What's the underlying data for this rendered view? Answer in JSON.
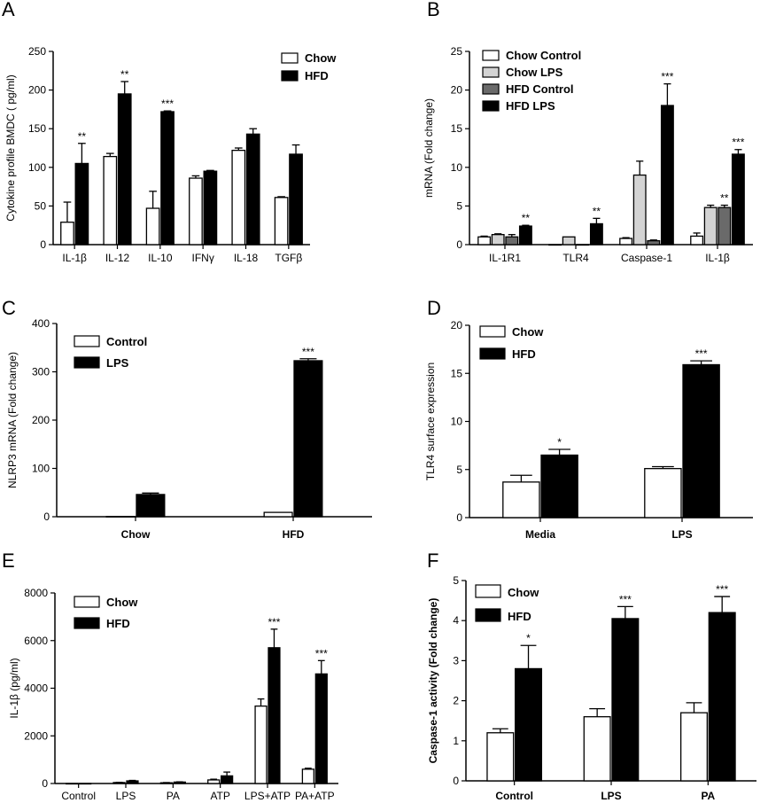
{
  "chart_data": [
    {
      "panel": "A",
      "type": "bar",
      "ylabel": "Cytokine profile BMDC ( pg/ml)",
      "ylim": [
        0,
        250
      ],
      "yticks": [
        0,
        50,
        100,
        150,
        200,
        250
      ],
      "categories": [
        "IL-1β",
        "IL-12",
        "IL-10",
        "IFNγ",
        "IL-18",
        "TGFβ"
      ],
      "series": [
        {
          "name": "Chow",
          "fill": "#ffffff",
          "values": [
            29,
            114,
            47,
            86,
            122,
            61
          ],
          "errors": [
            26,
            4,
            22,
            3,
            3,
            1
          ]
        },
        {
          "name": "HFD",
          "fill": "#000000",
          "values": [
            105,
            195,
            172,
            95,
            143,
            117
          ],
          "errors": [
            26,
            16,
            1,
            1,
            7,
            12
          ]
        }
      ],
      "annotations": [
        {
          "category": 0,
          "series": 1,
          "label": "**"
        },
        {
          "category": 1,
          "series": 1,
          "label": "**"
        },
        {
          "category": 2,
          "series": 1,
          "label": "***"
        }
      ],
      "legend_position": "top-right"
    },
    {
      "panel": "B",
      "type": "bar",
      "ylabel": "mRNA (Fold change)",
      "ylim": [
        0,
        25
      ],
      "yticks": [
        0,
        5,
        10,
        15,
        20,
        25
      ],
      "categories": [
        "IL-1R1",
        "TLR4",
        "Caspase-1",
        "IL-1β"
      ],
      "series": [
        {
          "name": "Chow Control",
          "fill": "#ffffff",
          "values": [
            1,
            0,
            0.8,
            1.1
          ],
          "errors": [
            0.1,
            0,
            0.1,
            0.4
          ]
        },
        {
          "name": "Chow LPS",
          "fill": "#d3d3d3",
          "values": [
            1.3,
            1,
            9,
            4.8
          ],
          "errors": [
            0.1,
            0,
            1.8,
            0.3
          ]
        },
        {
          "name": "HFD Control",
          "fill": "#6a6a6a",
          "values": [
            1,
            0,
            0.5,
            4.8
          ],
          "errors": [
            0.3,
            0,
            0.1,
            0.3
          ]
        },
        {
          "name": "HFD LPS",
          "fill": "#000000",
          "values": [
            2.4,
            2.7,
            18,
            11.7
          ],
          "errors": [
            0.1,
            0.7,
            2.8,
            0.6
          ]
        }
      ],
      "annotations": [
        {
          "category": 0,
          "series": 3,
          "label": "**"
        },
        {
          "category": 1,
          "series": 3,
          "label": "**"
        },
        {
          "category": 2,
          "series": 3,
          "label": "***"
        },
        {
          "category": 3,
          "series": 2,
          "label": "**"
        },
        {
          "category": 3,
          "series": 3,
          "label": "***"
        }
      ],
      "legend_position": "top-left"
    },
    {
      "panel": "C",
      "type": "bar",
      "ylabel": "NLRP3 mRNA (Fold change)",
      "ylim": [
        0,
        400
      ],
      "yticks": [
        0,
        100,
        200,
        300,
        400
      ],
      "categories": [
        "Chow",
        "HFD"
      ],
      "series": [
        {
          "name": "Control",
          "fill": "#ffffff",
          "values": [
            0.5,
            9
          ],
          "errors": [
            0,
            0
          ]
        },
        {
          "name": "LPS",
          "fill": "#000000",
          "values": [
            46,
            323
          ],
          "errors": [
            3,
            4
          ]
        }
      ],
      "annotations": [
        {
          "category": 1,
          "series": 1,
          "label": "***"
        }
      ],
      "legend_position": "top-left"
    },
    {
      "panel": "D",
      "type": "bar",
      "ylabel": "TLR4 surface expression",
      "ylim": [
        0,
        20
      ],
      "yticks": [
        0,
        5,
        10,
        15,
        20
      ],
      "categories": [
        "Media",
        "LPS"
      ],
      "series": [
        {
          "name": "Chow",
          "fill": "#ffffff",
          "values": [
            3.7,
            5.1
          ],
          "errors": [
            0.7,
            0.2
          ]
        },
        {
          "name": "HFD",
          "fill": "#000000",
          "values": [
            6.5,
            15.9
          ],
          "errors": [
            0.6,
            0.4
          ]
        }
      ],
      "annotations": [
        {
          "category": 0,
          "series": 1,
          "label": "*"
        },
        {
          "category": 1,
          "series": 1,
          "label": "***"
        }
      ],
      "legend_position": "top-left"
    },
    {
      "panel": "E",
      "type": "bar",
      "ylabel": "IL-1β (pg/ml)",
      "ylim": [
        0,
        8000
      ],
      "yticks": [
        0,
        2000,
        4000,
        6000,
        8000
      ],
      "categories": [
        "Control",
        "LPS",
        "PA",
        "ATP",
        "LPS+ATP",
        "PA+ATP"
      ],
      "series": [
        {
          "name": "Chow",
          "fill": "#ffffff",
          "values": [
            0,
            40,
            30,
            150,
            3250,
            600
          ],
          "errors": [
            0,
            10,
            10,
            30,
            300,
            40
          ]
        },
        {
          "name": "HFD",
          "fill": "#000000",
          "values": [
            0,
            110,
            60,
            320,
            5700,
            4600
          ],
          "errors": [
            0,
            20,
            10,
            160,
            780,
            560
          ]
        }
      ],
      "annotations": [
        {
          "category": 4,
          "series": 1,
          "label": "***"
        },
        {
          "category": 5,
          "series": 1,
          "label": "***"
        }
      ],
      "legend_position": "top-left"
    },
    {
      "panel": "F",
      "type": "bar",
      "ylabel": "Caspase-1 activity (Fold change)",
      "ylim": [
        0,
        5
      ],
      "yticks": [
        0,
        1,
        2,
        3,
        4,
        5
      ],
      "categories": [
        "Control",
        "LPS",
        "PA"
      ],
      "series": [
        {
          "name": "Chow",
          "fill": "#ffffff",
          "values": [
            1.2,
            1.6,
            1.7
          ],
          "errors": [
            0.1,
            0.2,
            0.25
          ]
        },
        {
          "name": "HFD",
          "fill": "#000000",
          "values": [
            2.8,
            4.05,
            4.2
          ],
          "errors": [
            0.58,
            0.3,
            0.4
          ]
        }
      ],
      "annotations": [
        {
          "category": 0,
          "series": 1,
          "label": "*"
        },
        {
          "category": 1,
          "series": 1,
          "label": "***"
        },
        {
          "category": 2,
          "series": 1,
          "label": "***"
        }
      ],
      "legend_position": "top-left"
    }
  ]
}
